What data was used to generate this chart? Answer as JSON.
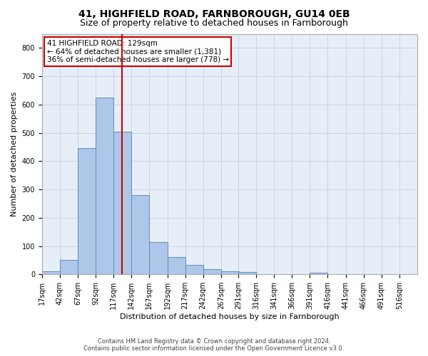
{
  "title1": "41, HIGHFIELD ROAD, FARNBOROUGH, GU14 0EB",
  "title2": "Size of property relative to detached houses in Farnborough",
  "xlabel": "Distribution of detached houses by size in Farnborough",
  "ylabel": "Number of detached properties",
  "annotation_line1": "41 HIGHFIELD ROAD: 129sqm",
  "annotation_line2": "← 64% of detached houses are smaller (1,381)",
  "annotation_line3": "36% of semi-detached houses are larger (778) →",
  "footer1": "Contains HM Land Registry data © Crown copyright and database right 2024.",
  "footer2": "Contains public sector information licensed under the Open Government Licence v3.0.",
  "bar_left_edges": [
    17,
    42,
    67,
    92,
    117,
    142,
    167,
    192,
    217,
    242,
    267,
    291,
    316,
    341,
    366,
    391,
    416,
    441,
    466,
    491,
    516
  ],
  "bar_heights": [
    10,
    50,
    445,
    625,
    505,
    280,
    115,
    62,
    33,
    18,
    10,
    8,
    0,
    0,
    0,
    5,
    0,
    0,
    0,
    0,
    0
  ],
  "bar_color": "#aec6e8",
  "bar_edge_color": "#5a8fc0",
  "vline_color": "#cc0000",
  "vline_x": 129,
  "ylim": [
    0,
    850
  ],
  "yticks": [
    0,
    100,
    200,
    300,
    400,
    500,
    600,
    700,
    800
  ],
  "grid_color": "#c8d4e8",
  "background_color": "#e8eef8",
  "annotation_box_color": "#ffffff",
  "annotation_box_edge": "#cc0000",
  "title_fontsize": 10,
  "subtitle_fontsize": 9,
  "xlabel_fontsize": 8,
  "ylabel_fontsize": 8,
  "tick_fontsize": 7,
  "annotation_fontsize": 7.5,
  "footer_fontsize": 6
}
